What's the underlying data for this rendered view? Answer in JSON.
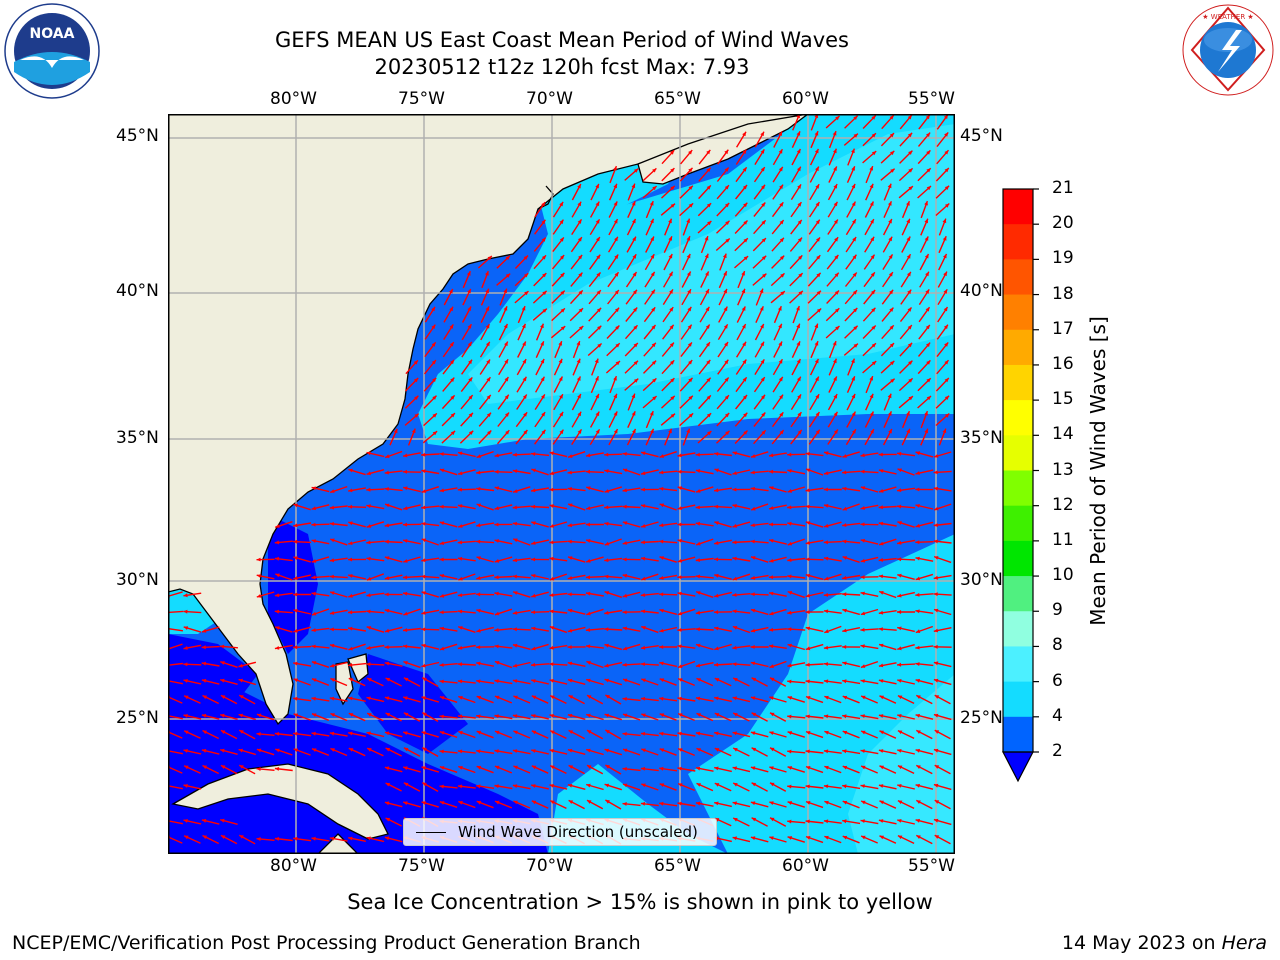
{
  "header": {
    "title_line1": "GEFS MEAN US East Coast Mean Period of Wind Waves",
    "title_line2": "20230512 t12z 120h fcst   Max: 7.93"
  },
  "logos": {
    "noaa": {
      "text": "NOAA",
      "ring_text": "NATIONAL OCEANIC AND ATMOSPHERIC ADMINISTRATION · U.S. DEPARTMENT OF COMMERCE",
      "color": "#1e3c8c"
    },
    "nws": {
      "ring_text": "NATIONAL WEATHER SERVICE",
      "color": "#d01e1e"
    }
  },
  "map": {
    "lon_labels": [
      "80°W",
      "75°W",
      "70°W",
      "65°W",
      "60°W",
      "55°W"
    ],
    "lat_labels": [
      "45°N",
      "40°N",
      "35°N",
      "30°N",
      "25°N"
    ],
    "extent": {
      "lon": [
        -85,
        -54.4
      ],
      "lat": [
        20.3,
        45.8
      ]
    },
    "colors": {
      "land": "#efeedd",
      "band_2_4_dark": "#0000ff",
      "band_2_4": "#0a64f8",
      "band_4_6": "#14dcff",
      "band_6_8": "#4cf0ff",
      "arrows": "#ff0000",
      "grid": "#b0b0b0"
    },
    "legend_label": "Wind Wave Direction (unscaled)"
  },
  "colorbar": {
    "label": "Mean Period of Wind Waves [s]",
    "ticks": [
      "21",
      "20",
      "19",
      "18",
      "17",
      "16",
      "15",
      "14",
      "13",
      "12",
      "11",
      "10",
      "9",
      "8",
      "6",
      "4",
      "2"
    ],
    "colors": [
      "#ff0000",
      "#ff2a00",
      "#ff5500",
      "#ff8000",
      "#ffaa00",
      "#ffd400",
      "#ffff00",
      "#e6ff00",
      "#c0ff00",
      "#80ff00",
      "#3ef000",
      "#00e600",
      "#50f080",
      "#90ffe0",
      "#4cf0ff",
      "#14dcff",
      "#0064ff",
      "#0000ff"
    ]
  },
  "footer": {
    "sea_ice_note": "Sea Ice Concentration > 15% is shown in pink to yellow",
    "credit": "NCEP/EMC/Verification Post Processing Product Generation Branch",
    "date_prefix": "14 May 2023 on ",
    "machine": "Hera"
  }
}
